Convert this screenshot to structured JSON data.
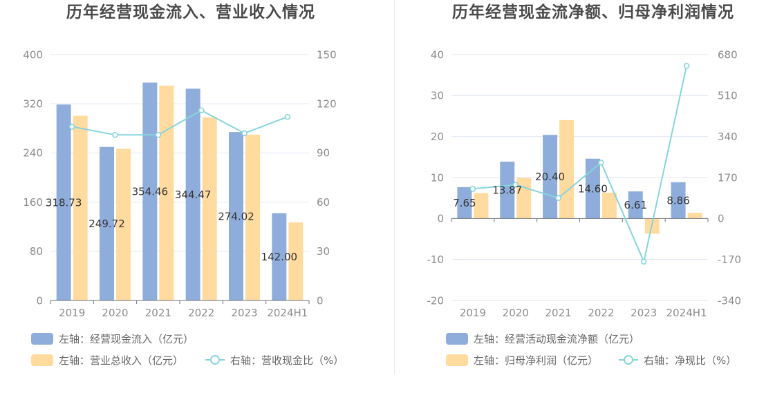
{
  "chart_data": [
    {
      "type": "bar",
      "title": "历年经营现金流入、营业收入情况",
      "categories": [
        "2019",
        "2020",
        "2021",
        "2022",
        "2023",
        "2024H1"
      ],
      "y_left": {
        "ylim": [
          0,
          400
        ],
        "ticks": [
          0,
          80,
          160,
          240,
          320,
          400
        ]
      },
      "y_right": {
        "ylim": [
          0,
          150
        ],
        "ticks": [
          0,
          30,
          60,
          90,
          120,
          150
        ]
      },
      "grid": true,
      "legend": "bottom-left",
      "series": [
        {
          "name": "左轴：经营现金流入（亿元）",
          "type": "bar",
          "axis": "left",
          "color": "#8eaddb",
          "values": [
            318.73,
            249.72,
            354.46,
            344.47,
            274.02,
            142.0
          ],
          "labels": [
            "318.73",
            "249.72",
            "354.46",
            "344.47",
            "274.02",
            "142.00"
          ]
        },
        {
          "name": "左轴：营业总收入（亿元）",
          "type": "bar",
          "axis": "left",
          "color": "#ffdb9f",
          "values": [
            300.5,
            246.8,
            349.5,
            298.0,
            269.8,
            127.0
          ]
        },
        {
          "name": "右轴：营收现金比（%）",
          "type": "line",
          "axis": "right",
          "color": "#86d4dc",
          "values": [
            106,
            101,
            101,
            116,
            102,
            112
          ]
        }
      ]
    },
    {
      "type": "bar",
      "title": "历年经营现金流净额、归母净利润情况",
      "categories": [
        "2019",
        "2020",
        "2021",
        "2022",
        "2023",
        "2024H1"
      ],
      "y_left": {
        "ylim": [
          -20,
          40
        ],
        "ticks": [
          -20,
          -10,
          0,
          10,
          20,
          30,
          40
        ]
      },
      "y_right": {
        "ylim": [
          -340,
          680
        ],
        "ticks": [
          -340,
          -170,
          0,
          170,
          340,
          510,
          680
        ]
      },
      "grid": true,
      "legend": "bottom-left",
      "series": [
        {
          "name": "左轴：经营活动现金流净额（亿元）",
          "type": "bar",
          "axis": "left",
          "color": "#8eaddb",
          "values": [
            7.65,
            13.87,
            20.4,
            14.6,
            6.61,
            8.86
          ],
          "labels": [
            "7.65",
            "13.87",
            "20.40",
            "14.60",
            "6.61",
            "8.86"
          ]
        },
        {
          "name": "左轴：归母净利润（亿元）",
          "type": "bar",
          "axis": "left",
          "color": "#ffdb9f",
          "values": [
            6.2,
            9.9,
            24.0,
            6.3,
            -3.7,
            1.4
          ]
        },
        {
          "name": "右轴：净现比（%）",
          "type": "line",
          "axis": "right",
          "color": "#86d4dc",
          "values": [
            123,
            140,
            85,
            232,
            -179,
            633
          ]
        }
      ]
    }
  ]
}
